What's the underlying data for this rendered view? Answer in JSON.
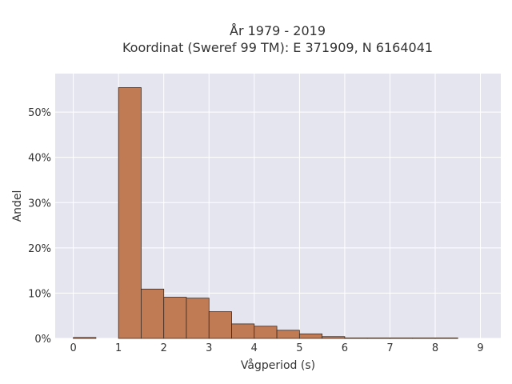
{
  "chart_data": {
    "type": "bar",
    "title_lines": [
      "År 1979 - 2019",
      "Koordinat (Sweref 99 TM): E 371909, N 6164041"
    ],
    "xlabel": "Vågperiod (s)",
    "ylabel": "Andel",
    "bin_width": 0.5,
    "x": [
      0.0,
      0.5,
      1.0,
      1.5,
      2.0,
      2.5,
      3.0,
      3.5,
      4.0,
      4.5,
      5.0,
      5.5,
      6.0,
      6.5,
      7.0,
      7.5,
      8.0
    ],
    "values": [
      0.2,
      0.0,
      55.4,
      10.9,
      9.1,
      8.9,
      5.9,
      3.2,
      2.7,
      1.8,
      1.0,
      0.4,
      0.1,
      0.1,
      0.1,
      0.1,
      0.1
    ],
    "xlim": [
      -0.4,
      9.45
    ],
    "ylim": [
      0,
      58.5
    ],
    "x_ticks": [
      0,
      1,
      2,
      3,
      4,
      5,
      6,
      7,
      8,
      9
    ],
    "y_ticks": [
      0,
      10,
      20,
      30,
      40,
      50
    ],
    "y_tick_suffix": "%",
    "grid": true,
    "colors": {
      "bar_fill": "#c07b55",
      "bar_stroke": "#3d2a1e",
      "plot_bg": "#e5e5f0",
      "grid": "#ffffff"
    }
  }
}
